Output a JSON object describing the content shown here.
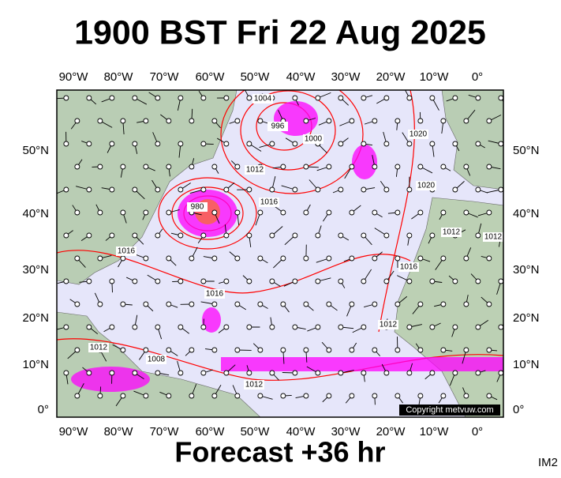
{
  "header": {
    "title": "1900 BST Fri 22 Aug 2025"
  },
  "map": {
    "longitude_labels": [
      "90°W",
      "80°W",
      "70°W",
      "60°W",
      "50°W",
      "40°W",
      "30°W",
      "20°W",
      "10°W",
      "0°"
    ],
    "latitude_labels": [
      "50°N",
      "40°N",
      "30°N",
      "20°N",
      "10°N",
      "0°"
    ],
    "isobar_labels": [
      "996",
      "1000",
      "1004",
      "1012",
      "1016",
      "1016",
      "1016",
      "1012",
      "1012",
      "1012",
      "1008",
      "1012",
      "1020",
      "1020",
      "980",
      "1016",
      "1012"
    ],
    "copyright": "Copyright metvuw.com"
  },
  "footer": {
    "forecast": "Forecast +36 hr",
    "image_id": "IM2"
  }
}
